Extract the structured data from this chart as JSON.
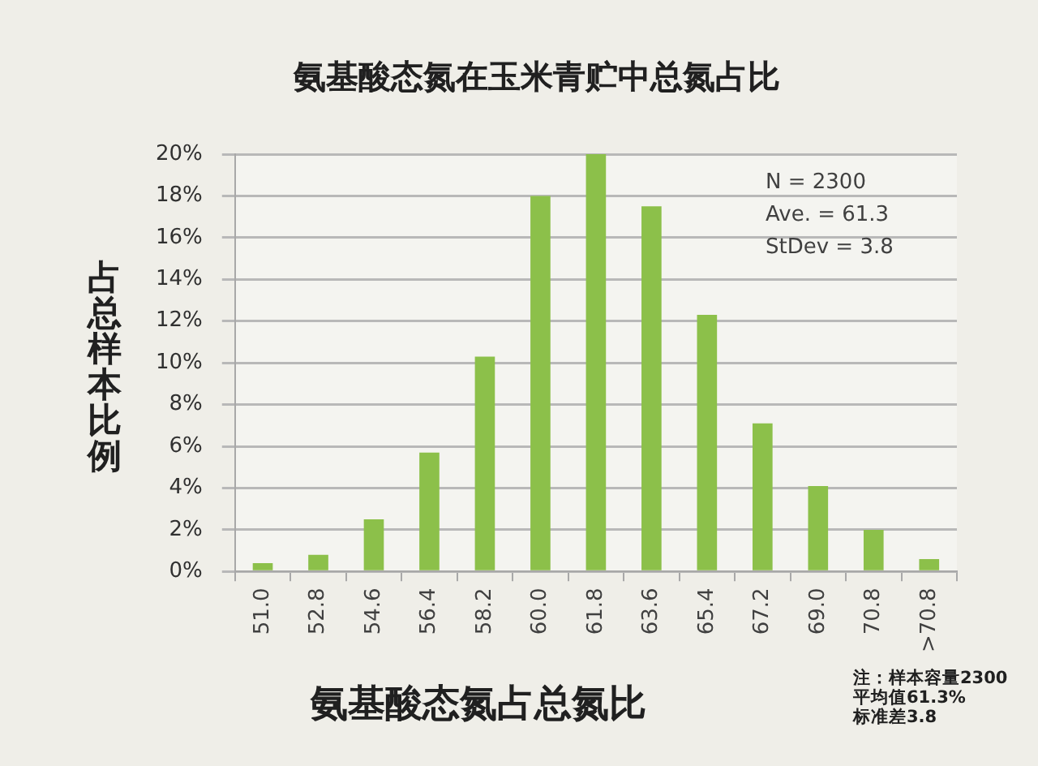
{
  "chart_data": {
    "type": "bar",
    "title": "氨基酸态氮在玉米青贮中总氮占比",
    "xlabel": "氨基酸态氮占总氮比",
    "ylabel": "占总样本比例",
    "categories": [
      "51.0",
      "52.8",
      "54.6",
      "56.4",
      "58.2",
      "60.0",
      "61.8",
      "63.6",
      "65.4",
      "67.2",
      "69.0",
      "70.8",
      ">70.8"
    ],
    "values": [
      0.4,
      0.8,
      2.5,
      5.7,
      10.3,
      18.0,
      20.0,
      17.5,
      12.3,
      7.1,
      4.1,
      2.0,
      0.6
    ],
    "color": "#8cc04a",
    "ylim": [
      0,
      20
    ],
    "yticks": [
      {
        "value": 0,
        "label": "0%"
      },
      {
        "value": 2,
        "label": "2%"
      },
      {
        "value": 4,
        "label": "4%"
      },
      {
        "value": 6,
        "label": "6%"
      },
      {
        "value": 8,
        "label": "8%"
      },
      {
        "value": 10,
        "label": "10%"
      },
      {
        "value": 12,
        "label": "12%"
      },
      {
        "value": 14,
        "label": "14%"
      },
      {
        "value": 16,
        "label": "16%"
      },
      {
        "value": 18,
        "label": "18%"
      },
      {
        "value": 20,
        "label": "20%"
      }
    ],
    "grid": "y",
    "annotations": [
      "N = 2300\nAve. = 61.3\nStDev = 3.8",
      "注：样本容量2300\n平均值61.3%\n标准差3.8"
    ]
  }
}
